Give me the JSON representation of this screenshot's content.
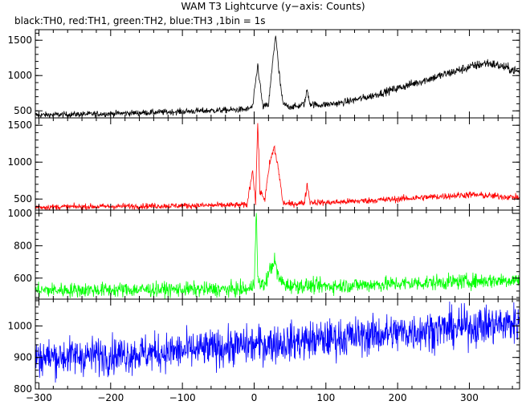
{
  "chart_data": {
    "type": "line",
    "title": "WAM T3 Lightcurve (y−axis: Counts)",
    "subtitle": "black:TH0, red:TH1, green:TH2, blue:TH3 ,1bin = 1s",
    "xlim": [
      -305,
      370
    ],
    "x_ticks": [
      -300,
      -200,
      -100,
      0,
      100,
      200,
      300
    ],
    "x_tick_labels": [
      "−300",
      "−200",
      "−100",
      "0",
      "100",
      "200",
      "300"
    ],
    "grid": false,
    "panels": [
      {
        "name": "TH0",
        "color": "#000000",
        "ylim": [
          400,
          1650
        ],
        "y_ticks": [
          500,
          1000,
          1500
        ],
        "x_keypoints": [
          -305,
          -200,
          -100,
          -10,
          -2,
          5,
          12,
          20,
          26,
          30,
          34,
          40,
          48,
          60,
          70,
          74,
          78,
          90,
          120,
          160,
          200,
          250,
          300,
          325,
          345,
          370
        ],
        "y_keypoints": [
          440,
          460,
          490,
          520,
          560,
          1150,
          560,
          580,
          1200,
          1600,
          1100,
          600,
          560,
          560,
          600,
          800,
          600,
          580,
          610,
          700,
          820,
          970,
          1120,
          1180,
          1130,
          1050
        ]
      },
      {
        "name": "TH1",
        "color": "#ff0000",
        "ylim": [
          350,
          1600
        ],
        "y_ticks": [
          500,
          1000,
          1500
        ],
        "x_keypoints": [
          -305,
          -100,
          -10,
          -2,
          2,
          5,
          8,
          15,
          22,
          28,
          34,
          40,
          50,
          70,
          74,
          78,
          100,
          200,
          300,
          370
        ],
        "y_keypoints": [
          390,
          410,
          420,
          900,
          450,
          1550,
          600,
          500,
          1000,
          1200,
          900,
          450,
          430,
          450,
          700,
          460,
          450,
          500,
          560,
          520
        ]
      },
      {
        "name": "TH2",
        "color": "#00ff00",
        "ylim": [
          470,
          1020
        ],
        "y_ticks": [
          600,
          800,
          1000
        ],
        "x_keypoints": [
          -305,
          -100,
          -5,
          0,
          3,
          5,
          8,
          15,
          22,
          28,
          35,
          45,
          100,
          200,
          300,
          370
        ],
        "y_keypoints": [
          525,
          530,
          530,
          580,
          1010,
          600,
          560,
          560,
          650,
          710,
          590,
          555,
          550,
          565,
          580,
          590
        ]
      },
      {
        "name": "TH3",
        "color": "#0000ff",
        "ylim": [
          800,
          1085
        ],
        "y_ticks": [
          800,
          900,
          1000
        ],
        "x_keypoints": [
          -305,
          -200,
          -100,
          0,
          100,
          200,
          300,
          370
        ],
        "y_keypoints": [
          900,
          908,
          920,
          940,
          958,
          978,
          998,
          1010
        ]
      }
    ]
  }
}
